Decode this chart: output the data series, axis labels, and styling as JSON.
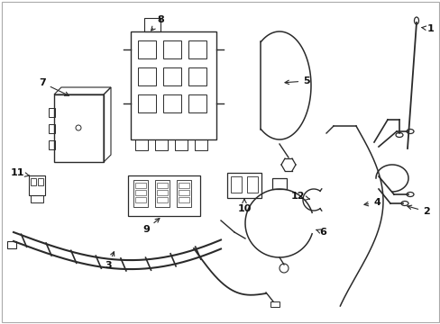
{
  "background_color": "#ffffff",
  "line_color": "#2a2a2a",
  "text_color": "#111111",
  "fig_width": 4.89,
  "fig_height": 3.6,
  "dpi": 100
}
